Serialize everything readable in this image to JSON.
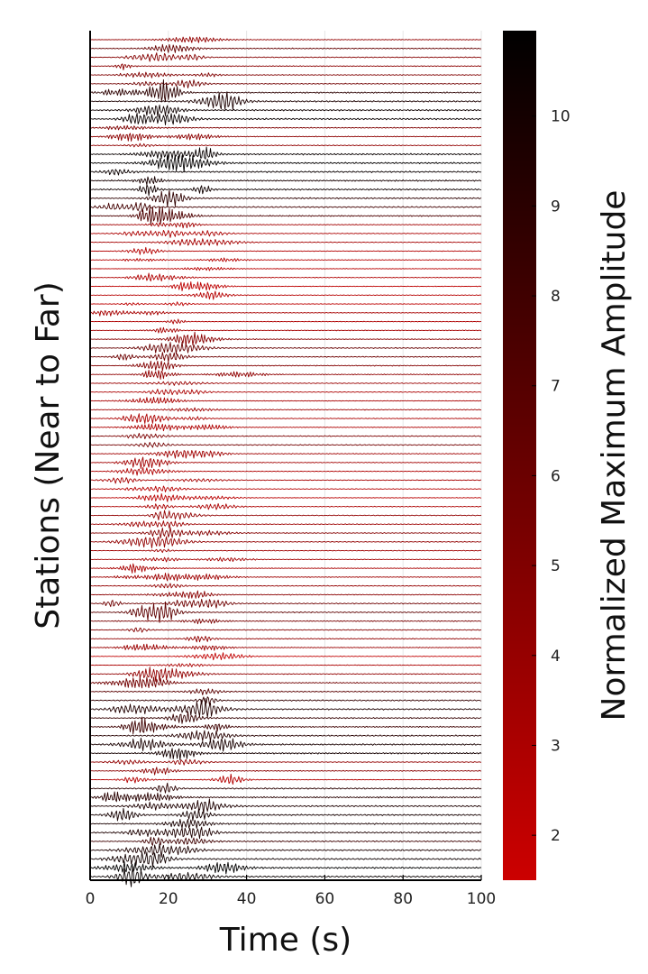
{
  "chart_data": {
    "type": "line",
    "title": "",
    "xlabel": "Time (s)",
    "ylabel": "Stations (Near to Far)",
    "xlim": [
      0,
      100
    ],
    "x_ticks": [
      0,
      20,
      40,
      60,
      80,
      100
    ],
    "grid": true,
    "legend": "none",
    "colorbar": {
      "label": "Normalized Maximum Amplitude",
      "range": [
        1.5,
        10.95
      ],
      "ticks": [
        2,
        3,
        4,
        5,
        6,
        7,
        8,
        9,
        10
      ],
      "color_low": "#cc0000",
      "color_high": "#000000"
    },
    "series": {
      "count": 96,
      "duration_s": 100,
      "amplitude": [
        4.1,
        6.3,
        4.8,
        4.5,
        5.0,
        5.7,
        8.9,
        9.7,
        10.3,
        10.5,
        5.1,
        4.4,
        4.2,
        10.6,
        10.8,
        10.5,
        9.9,
        10.2,
        8.8,
        7.9,
        7.4,
        3.4,
        3.0,
        3.3,
        2.6,
        2.5,
        2.4,
        2.8,
        2.2,
        2.5,
        2.2,
        3.2,
        2.9,
        3.3,
        4.6,
        6.2,
        5.9,
        4.9,
        4.3,
        3.8,
        3.0,
        3.1,
        3.6,
        3.0,
        2.9,
        5.2,
        5.6,
        3.5,
        3.4,
        2.8,
        3.2,
        2.5,
        2.4,
        3.0,
        4.2,
        3.7,
        4.8,
        4.2,
        3.5,
        3.3,
        3.1,
        3.6,
        4.1,
        4.5,
        5.8,
        6.6,
        5.3,
        4.8,
        4.2,
        3.8,
        2.0,
        3.0,
        4.2,
        5.7,
        6.8,
        8.6,
        9.4,
        8.5,
        8.1,
        9.2,
        9.8,
        10.0,
        4.2,
        4.5,
        2.6,
        9.0,
        9.1,
        9.6,
        10.0,
        9.8,
        9.6,
        8.1,
        9.7,
        10.2,
        10.9,
        10.6
      ]
    }
  }
}
